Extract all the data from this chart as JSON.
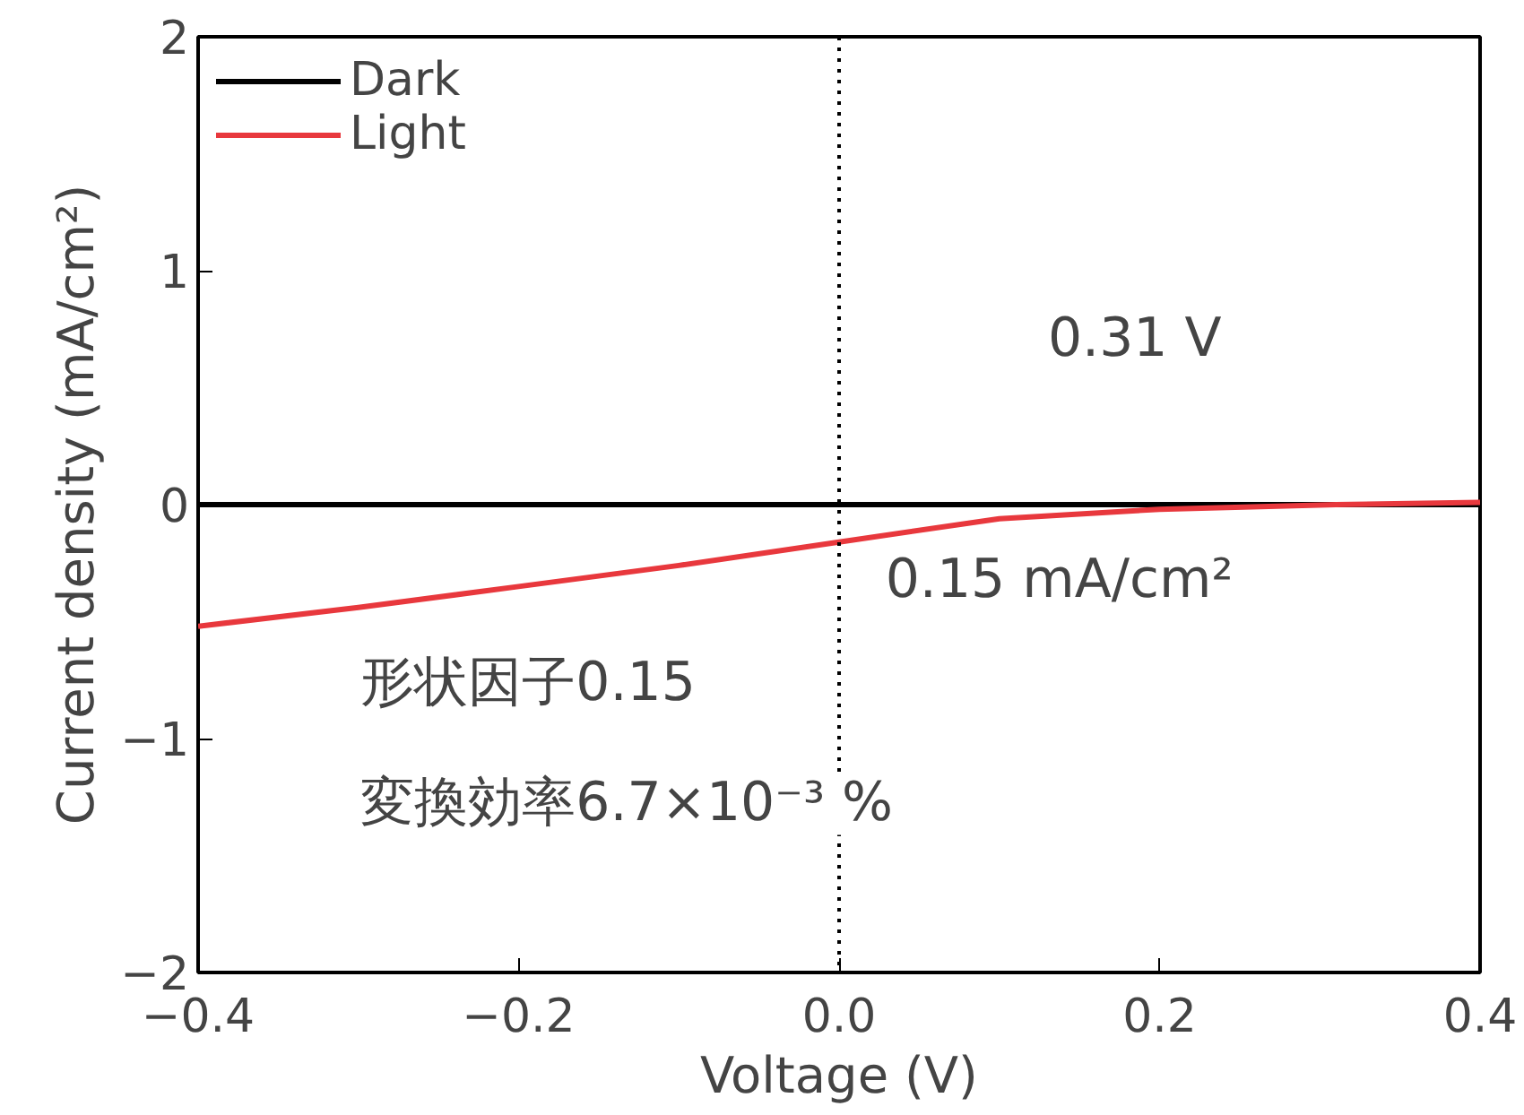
{
  "chart_data": {
    "type": "line",
    "xlabel": "Voltage (V)",
    "ylabel": "Current density (mA/cm²)",
    "x": [
      -0.4,
      -0.3,
      -0.2,
      -0.1,
      0.0,
      0.1,
      0.2,
      0.31,
      0.4
    ],
    "series": [
      {
        "name": "Dark",
        "color": "#000000",
        "values": [
          0,
          0,
          0,
          0,
          0,
          0,
          0,
          0,
          0
        ]
      },
      {
        "name": "Light",
        "color": "#e8383d",
        "values": [
          -0.52,
          -0.44,
          -0.35,
          -0.26,
          -0.16,
          -0.06,
          -0.02,
          0,
          0.01
        ]
      }
    ],
    "xlim": [
      -0.4,
      0.4
    ],
    "ylim": [
      -2,
      2
    ],
    "xticks": [
      {
        "value": -0.4,
        "label": "−0.4"
      },
      {
        "value": -0.2,
        "label": "−0.2"
      },
      {
        "value": 0,
        "label": "0.0"
      },
      {
        "value": 0.2,
        "label": "0.2"
      },
      {
        "value": 0.4,
        "label": "0.4"
      }
    ],
    "yticks": [
      {
        "value": -2,
        "label": "−2"
      },
      {
        "value": -1,
        "label": "−1"
      },
      0,
      1,
      2
    ],
    "ref_lines": [
      {
        "axis": "x",
        "value": 0,
        "line_style": "dotted",
        "color": "#000000"
      }
    ],
    "annotations": [
      "0.31 V",
      "0.15 mA/cm²",
      "形状因子0.15",
      "変換効率6.7×10⁻³ %"
    ],
    "legend": "top left",
    "grid": false,
    "marker": "none",
    "line_style": "solid"
  }
}
